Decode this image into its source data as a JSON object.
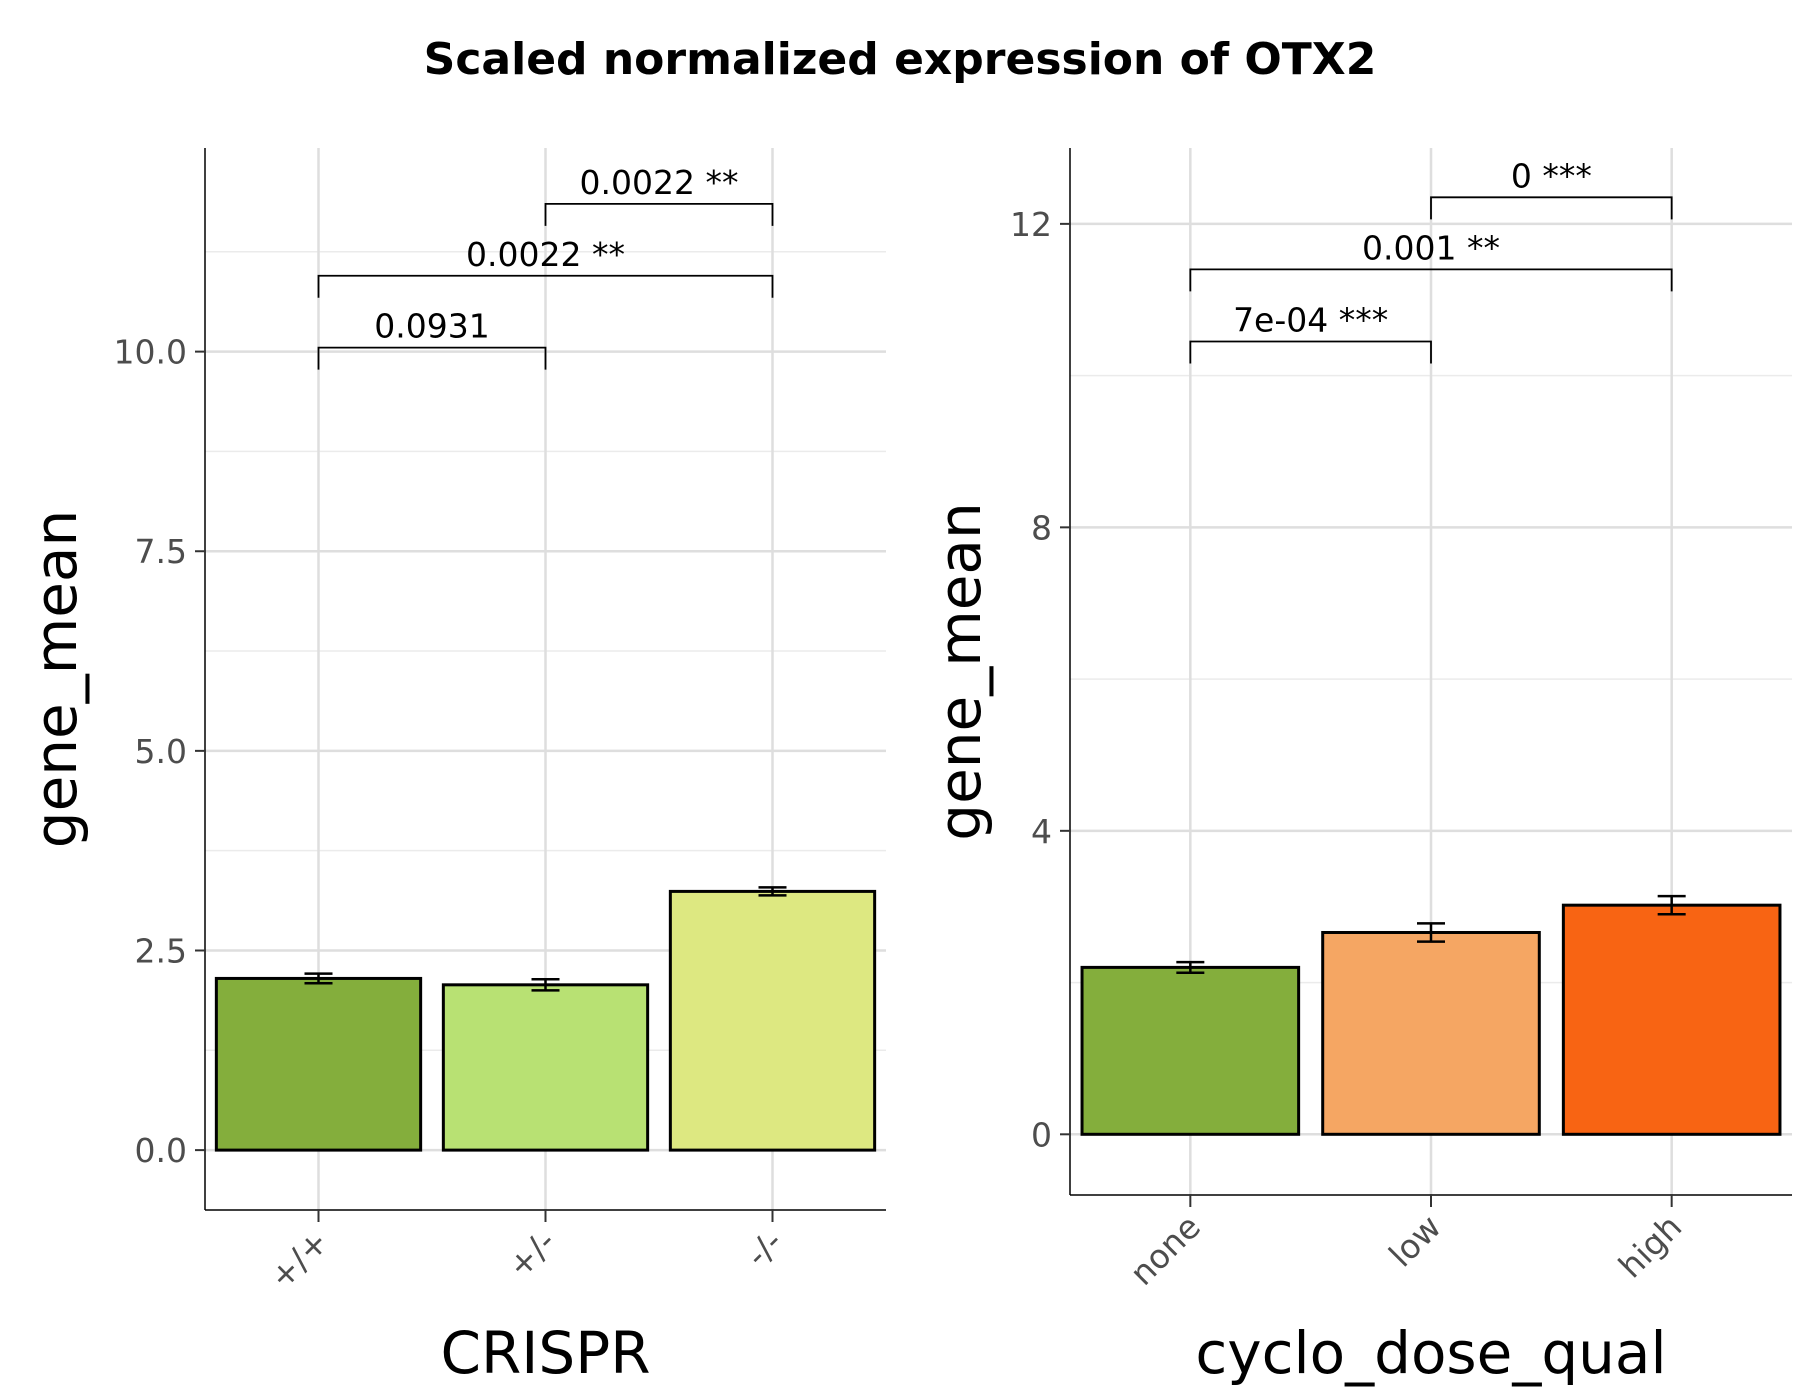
{
  "figure": {
    "title": "Scaled normalized expression of OTX2"
  },
  "chart_data": [
    {
      "type": "bar",
      "xlabel": "CRISPR",
      "ylabel": "gene_mean",
      "categories": [
        "+/+",
        "+/-",
        "-/-"
      ],
      "values": [
        2.15,
        2.07,
        3.24
      ],
      "error": [
        0.06,
        0.07,
        0.05
      ],
      "colors": [
        "#84ae3c",
        "#b8e173",
        "#dde881"
      ],
      "ylim": [
        -0.75,
        12.55
      ],
      "yticks": [
        0,
        2.5,
        5,
        7.5,
        10
      ],
      "ytick_labels": [
        "0.0",
        "2.5",
        "5.0",
        "7.5",
        "10.0"
      ],
      "grid": true,
      "comparisons": [
        {
          "from": 0,
          "to": 1,
          "y": 10.05,
          "label": "0.0931"
        },
        {
          "from": 0,
          "to": 2,
          "y": 10.95,
          "label": "0.0022 **"
        },
        {
          "from": 1,
          "to": 2,
          "y": 11.85,
          "label": "0.0022 **"
        }
      ]
    },
    {
      "type": "bar",
      "xlabel": "cyclo_dose_qual",
      "ylabel": "gene_mean",
      "categories": [
        "none",
        "low",
        "high"
      ],
      "values": [
        2.2,
        2.66,
        3.02
      ],
      "error": [
        0.07,
        0.12,
        0.12
      ],
      "colors": [
        "#84ae3c",
        "#f5a663",
        "#f86413"
      ],
      "ylim": [
        -0.8,
        13.0
      ],
      "yticks": [
        0,
        4,
        8,
        12
      ],
      "ytick_labels": [
        "0",
        "4",
        "8",
        "12"
      ],
      "grid": true,
      "comparisons": [
        {
          "from": 0,
          "to": 1,
          "y": 10.45,
          "label": "7e-04 ***"
        },
        {
          "from": 0,
          "to": 2,
          "y": 11.4,
          "label": "0.001 **"
        },
        {
          "from": 1,
          "to": 2,
          "y": 12.35,
          "label": "0 ***"
        }
      ]
    }
  ]
}
